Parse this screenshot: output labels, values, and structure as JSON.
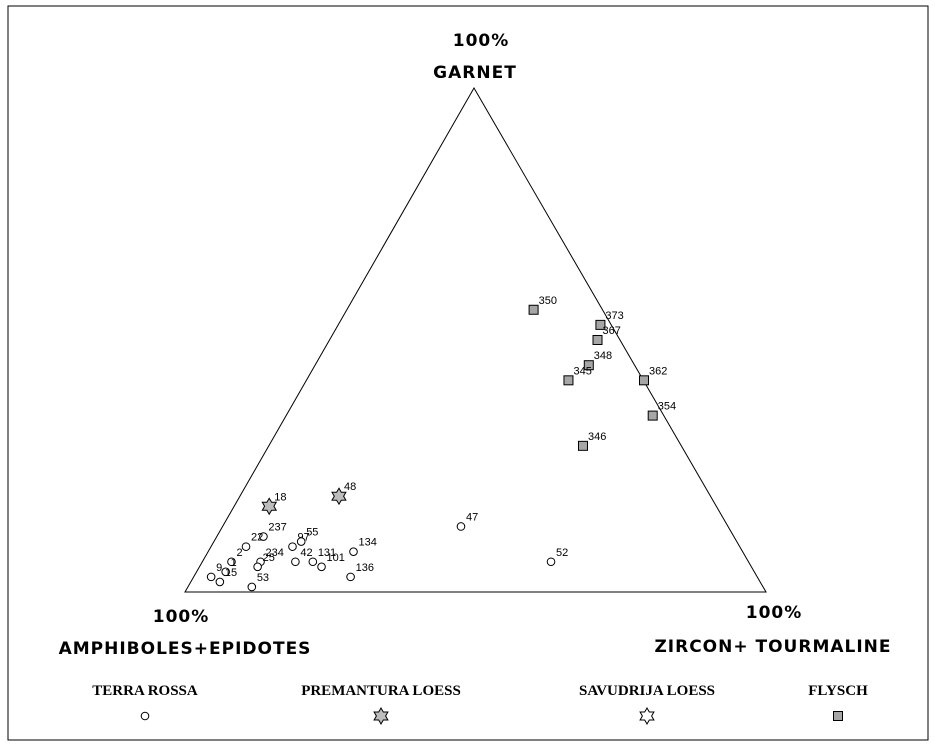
{
  "chart_data": {
    "type": "ternary",
    "vertices": [
      {
        "percent": "100%",
        "label": "GARNET"
      },
      {
        "percent": "100%",
        "label": "AMPHIBOLES+EPIDOTES"
      },
      {
        "percent": "100%",
        "label": "ZIRCON+ TOURMALINE"
      }
    ],
    "series": [
      {
        "name": "TERRA ROSSA",
        "marker": "circle",
        "color": "#ffffff",
        "labels": [
          "47",
          "52",
          "134",
          "136",
          "131",
          "101",
          "42",
          "97",
          "55",
          "237",
          "22",
          "234",
          "2",
          "25",
          "1",
          "9",
          "15",
          "53"
        ],
        "garnet": [
          13,
          6,
          8,
          3,
          6,
          5,
          6,
          9,
          10,
          11,
          9,
          6,
          6,
          5,
          4,
          3,
          2,
          1
        ],
        "amphibole_epidote": [
          46,
          34,
          67,
          70,
          75,
          74,
          78,
          77,
          75,
          81,
          85,
          84,
          89,
          85,
          91,
          94,
          93,
          88
        ],
        "zircon_tourmaline": [
          41,
          60,
          25,
          27,
          19,
          21,
          16,
          14,
          15,
          8,
          6,
          10,
          5,
          10,
          5,
          3,
          5,
          11
        ]
      },
      {
        "name": "PREMANTURA LOESS",
        "marker": "star",
        "color": "#bdbdbd",
        "labels": [
          "18",
          "48"
        ],
        "garnet": [
          17,
          19
        ],
        "amphibole_epidote": [
          77,
          64
        ],
        "zircon_tourmaline": [
          6,
          17
        ]
      },
      {
        "name": "SAVUDRIJA LOESS",
        "marker": "star",
        "color": "#ffffff",
        "labels": [],
        "garnet": [],
        "amphibole_epidote": [],
        "zircon_tourmaline": []
      },
      {
        "name": "FLYSCH",
        "marker": "square",
        "color": "#a6a6a6",
        "labels": [
          "350",
          "373",
          "367",
          "348",
          "345",
          "362",
          "354",
          "346"
        ],
        "garnet": [
          56,
          53,
          50,
          45,
          42,
          42,
          35,
          29
        ],
        "amphibole_epidote": [
          12,
          2,
          4,
          8,
          13,
          0,
          2,
          17
        ],
        "zircon_tourmaline": [
          32,
          45,
          46,
          47,
          45,
          58,
          63,
          54
        ]
      }
    ]
  }
}
